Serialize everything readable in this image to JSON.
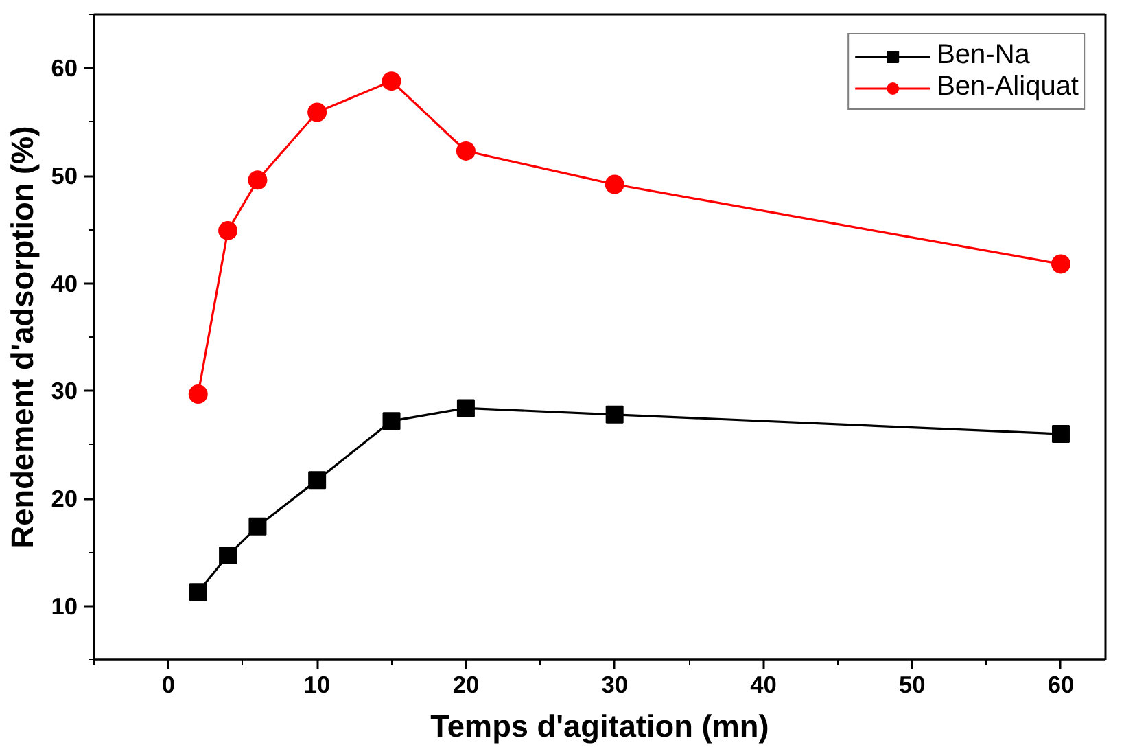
{
  "chart_data": {
    "type": "line",
    "xlabel": "Temps d'agitation (mn)",
    "ylabel": "Rendement d'adsorption (%)",
    "x": [
      2,
      4,
      6,
      10,
      15,
      20,
      30,
      60
    ],
    "series": [
      {
        "name": "Ben-Na",
        "color": "#000000",
        "marker": "square",
        "values": [
          11.3,
          14.7,
          17.4,
          21.7,
          27.2,
          28.4,
          27.8,
          26.0
        ]
      },
      {
        "name": "Ben-Aliquat",
        "color": "#ff0000",
        "marker": "circle",
        "values": [
          29.7,
          44.9,
          49.6,
          55.9,
          58.8,
          52.3,
          49.2,
          41.8
        ]
      }
    ],
    "xlim": [
      -5,
      63
    ],
    "xticks": [
      0,
      10,
      20,
      30,
      40,
      50,
      60
    ],
    "ylim": [
      5,
      65
    ],
    "yticks": [
      10,
      20,
      30,
      40,
      50,
      60
    ],
    "grid": false,
    "legend": "top right",
    "line_style": "solid"
  }
}
